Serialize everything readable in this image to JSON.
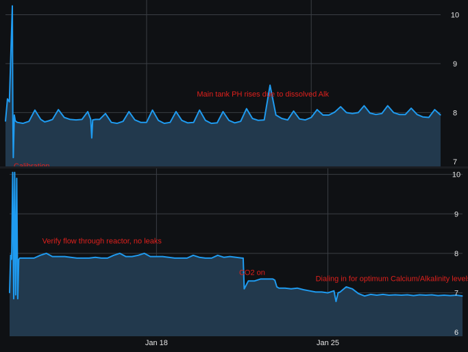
{
  "colors": {
    "background": "#0f1114",
    "plot_fill": "#22394d",
    "grid": "#3b3f45",
    "line": "#1f9bf0",
    "tick_text": "#e6e6e6",
    "annotation": "#e0201c"
  },
  "chart_data": [
    {
      "type": "area",
      "title": "",
      "xlabel": "",
      "ylabel": "",
      "ylim": [
        6.9,
        10.3
      ],
      "xlim": [
        "2015-01-12T00:00",
        "2015-01-30T12:00"
      ],
      "yticks": [
        10,
        9,
        8,
        7
      ],
      "x_grid_dates": [
        "2015-01-18T00:00",
        "2015-01-25T00:00"
      ],
      "grid": true,
      "annotations": [
        {
          "text": "Main tank PH rises due to dissolved Alk",
          "x": "2015-01-25T18:00",
          "y": 8.33
        }
      ],
      "series": [
        {
          "x": [
            "2015-01-12T00:00",
            "2015-01-12T02:00",
            "2015-01-12T04:00",
            "2015-01-12T07:00",
            "2015-01-12T07:30",
            "2015-01-12T08:00",
            "2015-01-12T09:00",
            "2015-01-12T10:00",
            "2015-01-12T12:00",
            "2015-01-12T18:00",
            "2015-01-13T00:00",
            "2015-01-13T06:00",
            "2015-01-13T12:00",
            "2015-01-13T16:00",
            "2015-01-13T20:00",
            "2015-01-14T00:00",
            "2015-01-14T06:00",
            "2015-01-14T12:00",
            "2015-01-14T18:00",
            "2015-01-15T00:00",
            "2015-01-15T06:00",
            "2015-01-15T12:00",
            "2015-01-15T15:00",
            "2015-01-15T16:00",
            "2015-01-15T17:00",
            "2015-01-15T20:00",
            "2015-01-16T00:00",
            "2015-01-16T06:00",
            "2015-01-16T12:00",
            "2015-01-16T18:00",
            "2015-01-17T00:00",
            "2015-01-17T06:00",
            "2015-01-17T12:00",
            "2015-01-17T18:00",
            "2015-01-18T00:00",
            "2015-01-18T06:00",
            "2015-01-18T12:00",
            "2015-01-18T18:00",
            "2015-01-19T00:00",
            "2015-01-19T06:00",
            "2015-01-19T12:00",
            "2015-01-19T18:00",
            "2015-01-20T00:00",
            "2015-01-20T06:00",
            "2015-01-20T12:00",
            "2015-01-20T18:00",
            "2015-01-21T00:00",
            "2015-01-21T06:00",
            "2015-01-21T12:00",
            "2015-01-21T18:00",
            "2015-01-22T00:00",
            "2015-01-22T06:00",
            "2015-01-22T12:00",
            "2015-01-22T18:00",
            "2015-01-23T00:00",
            "2015-01-23T06:00",
            "2015-01-23T12:00",
            "2015-01-23T18:00",
            "2015-01-24T00:00",
            "2015-01-24T06:00",
            "2015-01-24T12:00",
            "2015-01-24T18:00",
            "2015-01-25T00:00",
            "2015-01-25T06:00",
            "2015-01-25T12:00",
            "2015-01-25T18:00",
            "2015-01-26T00:00",
            "2015-01-26T06:00",
            "2015-01-26T12:00",
            "2015-01-26T18:00",
            "2015-01-27T00:00",
            "2015-01-27T06:00",
            "2015-01-27T12:00",
            "2015-01-27T18:00",
            "2015-01-28T00:00",
            "2015-01-28T06:00",
            "2015-01-28T12:00",
            "2015-01-28T18:00",
            "2015-01-29T00:00",
            "2015-01-29T06:00",
            "2015-01-29T12:00",
            "2015-01-29T18:00",
            "2015-01-30T00:00",
            "2015-01-30T06:00",
            "2015-01-30T12:00"
          ],
          "y": [
            7.82,
            8.28,
            8.22,
            10.18,
            7.95,
            7.08,
            7.95,
            7.83,
            7.8,
            7.78,
            7.82,
            8.05,
            7.86,
            7.81,
            7.83,
            7.86,
            8.06,
            7.9,
            7.86,
            7.85,
            7.86,
            8.02,
            7.86,
            7.48,
            7.85,
            7.86,
            7.86,
            7.98,
            7.8,
            7.78,
            7.82,
            8.02,
            7.85,
            7.8,
            7.8,
            8.05,
            7.84,
            7.78,
            7.8,
            8.02,
            7.84,
            7.79,
            7.8,
            8.05,
            7.84,
            7.78,
            7.79,
            8.02,
            7.84,
            7.79,
            7.82,
            8.08,
            7.88,
            7.84,
            7.85,
            8.56,
            7.95,
            7.88,
            7.85,
            8.03,
            7.87,
            7.85,
            7.9,
            8.06,
            7.95,
            7.95,
            8.01,
            8.12,
            8.0,
            7.98,
            8.0,
            8.14,
            7.99,
            7.96,
            7.98,
            8.14,
            8.0,
            7.96,
            7.96,
            8.09,
            7.96,
            7.91,
            7.9,
            8.06,
            7.95
          ]
        }
      ]
    },
    {
      "type": "area",
      "title": "",
      "xlabel": "",
      "ylabel": "",
      "ylim": [
        5.9,
        10.15
      ],
      "xlim": [
        "2015-01-12T00:00",
        "2015-01-30T12:00"
      ],
      "yticks": [
        10,
        9,
        8,
        7,
        6
      ],
      "x_grid_dates": [
        "2015-01-18T00:00",
        "2015-01-25T00:00"
      ],
      "xtick_labels": [
        {
          "date": "2015-01-18T00:00",
          "label": "Jan 18"
        },
        {
          "date": "2015-01-25T00:00",
          "label": "Jan 25"
        }
      ],
      "grid": true,
      "annotations": [
        {
          "text": "Calibration",
          "x": "2015-01-12T04:00",
          "y": 10.15
        },
        {
          "text": "Verify flow through reactor, no leaks",
          "x": "2015-01-13T08:00",
          "y": 8.25
        },
        {
          "text": "CO2 on",
          "x": "2015-01-21T09:00",
          "y": 7.45
        },
        {
          "text": "Dialing in for optimum Calcium/Alkalinity levels",
          "x": "2015-01-24T12:00",
          "y": 7.3
        }
      ],
      "series": [
        {
          "x": [
            "2015-01-12T00:00",
            "2015-01-12T01:00",
            "2015-01-12T02:00",
            "2015-01-12T03:00",
            "2015-01-12T04:00",
            "2015-01-12T05:00",
            "2015-01-12T06:00",
            "2015-01-12T07:00",
            "2015-01-12T08:00",
            "2015-01-12T09:00",
            "2015-01-12T10:00",
            "2015-01-12T11:00",
            "2015-01-12T12:00",
            "2015-01-12T18:00",
            "2015-01-13T00:00",
            "2015-01-13T06:00",
            "2015-01-13T12:00",
            "2015-01-13T18:00",
            "2015-01-14T00:00",
            "2015-01-14T06:00",
            "2015-01-14T12:00",
            "2015-01-14T18:00",
            "2015-01-15T00:00",
            "2015-01-15T06:00",
            "2015-01-15T12:00",
            "2015-01-15T18:00",
            "2015-01-16T00:00",
            "2015-01-16T06:00",
            "2015-01-16T12:00",
            "2015-01-16T18:00",
            "2015-01-17T00:00",
            "2015-01-17T06:00",
            "2015-01-17T12:00",
            "2015-01-17T18:00",
            "2015-01-18T00:00",
            "2015-01-18T06:00",
            "2015-01-18T12:00",
            "2015-01-18T18:00",
            "2015-01-19T00:00",
            "2015-01-19T06:00",
            "2015-01-19T12:00",
            "2015-01-19T18:00",
            "2015-01-20T00:00",
            "2015-01-20T06:00",
            "2015-01-20T12:00",
            "2015-01-20T18:00",
            "2015-01-21T00:00",
            "2015-01-21T06:00",
            "2015-01-21T12:00",
            "2015-01-21T13:00",
            "2015-01-21T14:00",
            "2015-01-21T18:00",
            "2015-01-22T00:00",
            "2015-01-22T06:00",
            "2015-01-22T12:00",
            "2015-01-22T18:00",
            "2015-01-22T20:00",
            "2015-01-22T22:00",
            "2015-01-23T00:00",
            "2015-01-23T06:00",
            "2015-01-23T12:00",
            "2015-01-23T18:00",
            "2015-01-24T00:00",
            "2015-01-24T06:00",
            "2015-01-24T12:00",
            "2015-01-24T18:00",
            "2015-01-25T00:00",
            "2015-01-25T06:00",
            "2015-01-25T08:00",
            "2015-01-25T10:00",
            "2015-01-25T12:00",
            "2015-01-25T18:00",
            "2015-01-26T00:00",
            "2015-01-26T06:00",
            "2015-01-26T12:00",
            "2015-01-26T18:00",
            "2015-01-27T00:00",
            "2015-01-27T06:00",
            "2015-01-27T12:00",
            "2015-01-27T18:00",
            "2015-01-28T00:00",
            "2015-01-28T06:00",
            "2015-01-28T12:00",
            "2015-01-28T18:00",
            "2015-01-29T00:00",
            "2015-01-29T06:00",
            "2015-01-29T12:00",
            "2015-01-29T18:00",
            "2015-01-30T00:00",
            "2015-01-30T06:00",
            "2015-01-30T12:00"
          ],
          "y": [
            7.0,
            7.95,
            7.85,
            10.05,
            6.85,
            10.05,
            6.95,
            9.9,
            6.85,
            7.85,
            7.88,
            7.88,
            7.88,
            7.88,
            7.88,
            7.95,
            8.0,
            7.92,
            7.92,
            7.92,
            7.9,
            7.88,
            7.88,
            7.88,
            7.9,
            7.88,
            7.88,
            7.95,
            8.0,
            7.92,
            7.92,
            7.95,
            8.0,
            7.92,
            7.92,
            7.92,
            7.9,
            7.88,
            7.88,
            7.88,
            7.95,
            7.9,
            7.88,
            7.88,
            7.95,
            7.9,
            7.92,
            7.9,
            7.88,
            7.88,
            7.1,
            7.3,
            7.3,
            7.35,
            7.35,
            7.35,
            7.32,
            7.15,
            7.12,
            7.12,
            7.1,
            7.12,
            7.08,
            7.05,
            7.02,
            7.02,
            7.0,
            7.05,
            6.78,
            7.0,
            7.02,
            7.15,
            7.1,
            6.98,
            6.92,
            6.96,
            6.94,
            6.96,
            6.94,
            6.95,
            6.94,
            6.95,
            6.93,
            6.95,
            6.94,
            6.95,
            6.93,
            6.94,
            6.93,
            6.94,
            6.92
          ]
        }
      ]
    }
  ]
}
